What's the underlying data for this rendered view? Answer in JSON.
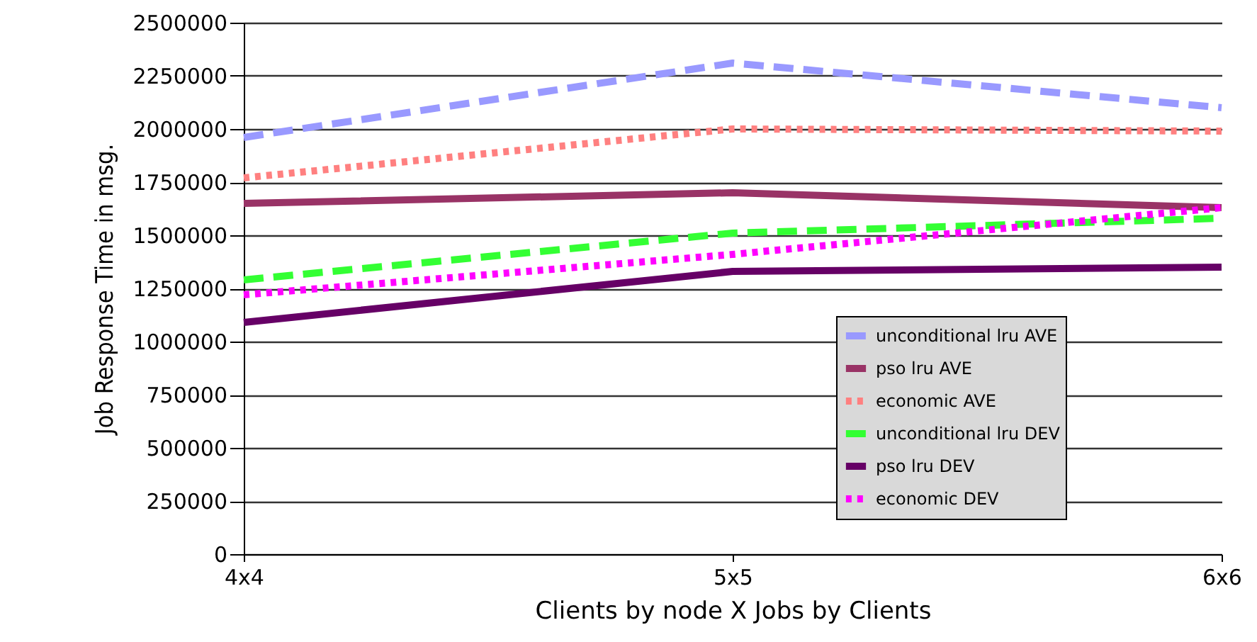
{
  "chart_data": {
    "type": "line",
    "xlabel": "Clients by node X Jobs by Clients",
    "ylabel": "Job Response Time in msg.",
    "categories": [
      "4x4",
      "5x5",
      "6x6"
    ],
    "series": [
      {
        "name": "unconditional lru AVE",
        "color": "#9999ff",
        "line_style": "dashed",
        "values": [
          1960000,
          2310000,
          2100000
        ]
      },
      {
        "name": "pso lru AVE",
        "color": "#993366",
        "line_style": "solid",
        "values": [
          1650000,
          1700000,
          1630000
        ]
      },
      {
        "name": "economic AVE",
        "color": "#ff8080",
        "line_style": "dotted",
        "values": [
          1770000,
          2000000,
          1990000
        ]
      },
      {
        "name": "unconditional lru DEV",
        "color": "#33ff33",
        "line_style": "dashed",
        "values": [
          1290000,
          1510000,
          1580000
        ]
      },
      {
        "name": "pso lru DEV",
        "color": "#660066",
        "line_style": "solid",
        "values": [
          1090000,
          1330000,
          1350000
        ]
      },
      {
        "name": "economic DEV",
        "color": "#ff00ff",
        "line_style": "dotted",
        "values": [
          1220000,
          1410000,
          1630000
        ]
      }
    ],
    "ylim": [
      0,
      2500000
    ],
    "yticks": [
      0,
      250000,
      500000,
      750000,
      1000000,
      1250000,
      1500000,
      1750000,
      2000000,
      2250000,
      2500000
    ],
    "grid": "y",
    "legend": "bottom right",
    "marker": "none"
  }
}
